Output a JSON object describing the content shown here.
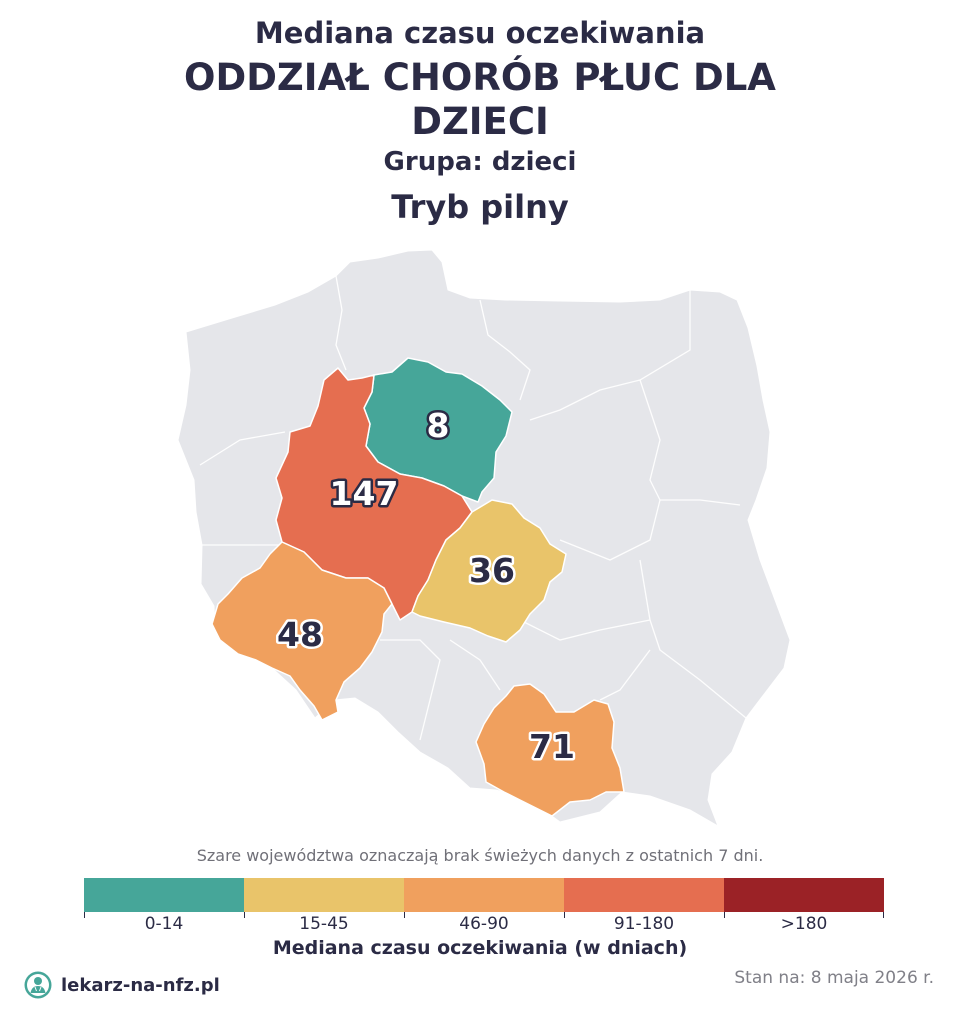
{
  "header": {
    "line1": "Mediana czasu oczekiwania",
    "line2": "ODDZIAŁ CHORÓB PŁUC DLA DZIECI",
    "line3": "Grupa: dzieci",
    "line4": "Tryb pilny"
  },
  "map": {
    "no_data_color": "#e5e6ea",
    "border_color": "#ffffff",
    "regions": [
      {
        "key": "kujawsko-pomorskie",
        "value": "8",
        "color": "#46a699",
        "text_color": "#ffffff"
      },
      {
        "key": "wielkopolskie",
        "value": "147",
        "color": "#e56e50",
        "text_color": "#ffffff"
      },
      {
        "key": "lodzkie",
        "value": "36",
        "color": "#e9c46a",
        "text_color": "#2b2b45"
      },
      {
        "key": "dolnoslaskie",
        "value": "48",
        "color": "#f0a05e",
        "text_color": "#2b2b45"
      },
      {
        "key": "malopolskie",
        "value": "71",
        "color": "#f0a05e",
        "text_color": "#2b2b45"
      }
    ]
  },
  "note": "Szare województwa oznaczają brak świeżych danych z ostatnich 7 dni.",
  "legend": {
    "title": "Mediana czasu oczekiwania (w dniach)",
    "items": [
      {
        "label": "0-14",
        "color": "#46a699"
      },
      {
        "label": "15-45",
        "color": "#e9c46a"
      },
      {
        "label": "46-90",
        "color": "#f0a05e"
      },
      {
        "label": "91-180",
        "color": "#e56e50"
      },
      {
        "label": ">180",
        "color": "#9b2226"
      }
    ]
  },
  "footer": {
    "brand": "lekarz-na-nfz.pl",
    "stand": "Stan na: 8 maja 2026 r.",
    "brand_icon": "doctor-icon",
    "brand_color": "#46a699"
  }
}
